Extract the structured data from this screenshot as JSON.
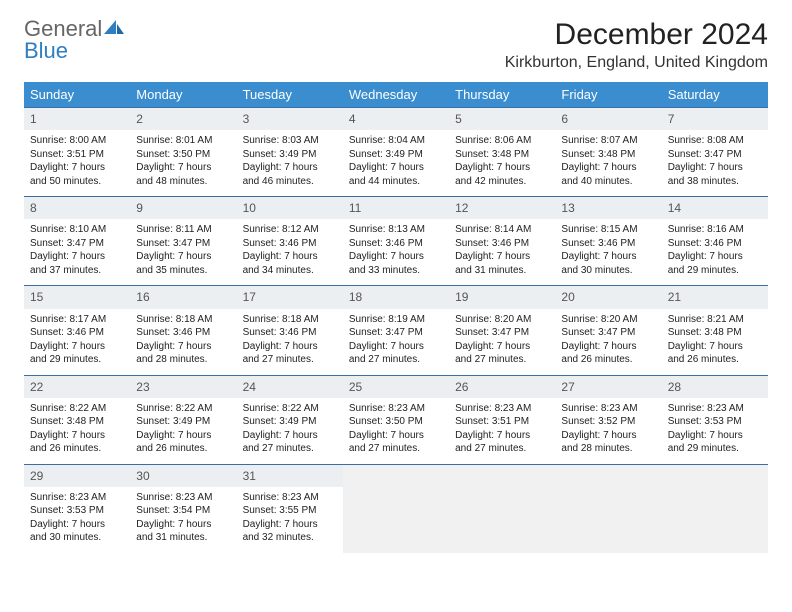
{
  "logo": {
    "line1": "General",
    "line2": "Blue"
  },
  "title": "December 2024",
  "location": "Kirkburton, England, United Kingdom",
  "colors": {
    "header_bg": "#3a8dce",
    "header_text": "#ffffff",
    "row_border": "#3a6ea5",
    "daynum_bg": "#eceff1",
    "empty_bg": "#f1f1f1",
    "logo_accent": "#2f7ec0"
  },
  "daysOfWeek": [
    "Sunday",
    "Monday",
    "Tuesday",
    "Wednesday",
    "Thursday",
    "Friday",
    "Saturday"
  ],
  "weeks": [
    [
      {
        "num": "1",
        "sunrise": "Sunrise: 8:00 AM",
        "sunset": "Sunset: 3:51 PM",
        "daylight": "Daylight: 7 hours and 50 minutes."
      },
      {
        "num": "2",
        "sunrise": "Sunrise: 8:01 AM",
        "sunset": "Sunset: 3:50 PM",
        "daylight": "Daylight: 7 hours and 48 minutes."
      },
      {
        "num": "3",
        "sunrise": "Sunrise: 8:03 AM",
        "sunset": "Sunset: 3:49 PM",
        "daylight": "Daylight: 7 hours and 46 minutes."
      },
      {
        "num": "4",
        "sunrise": "Sunrise: 8:04 AM",
        "sunset": "Sunset: 3:49 PM",
        "daylight": "Daylight: 7 hours and 44 minutes."
      },
      {
        "num": "5",
        "sunrise": "Sunrise: 8:06 AM",
        "sunset": "Sunset: 3:48 PM",
        "daylight": "Daylight: 7 hours and 42 minutes."
      },
      {
        "num": "6",
        "sunrise": "Sunrise: 8:07 AM",
        "sunset": "Sunset: 3:48 PM",
        "daylight": "Daylight: 7 hours and 40 minutes."
      },
      {
        "num": "7",
        "sunrise": "Sunrise: 8:08 AM",
        "sunset": "Sunset: 3:47 PM",
        "daylight": "Daylight: 7 hours and 38 minutes."
      }
    ],
    [
      {
        "num": "8",
        "sunrise": "Sunrise: 8:10 AM",
        "sunset": "Sunset: 3:47 PM",
        "daylight": "Daylight: 7 hours and 37 minutes."
      },
      {
        "num": "9",
        "sunrise": "Sunrise: 8:11 AM",
        "sunset": "Sunset: 3:47 PM",
        "daylight": "Daylight: 7 hours and 35 minutes."
      },
      {
        "num": "10",
        "sunrise": "Sunrise: 8:12 AM",
        "sunset": "Sunset: 3:46 PM",
        "daylight": "Daylight: 7 hours and 34 minutes."
      },
      {
        "num": "11",
        "sunrise": "Sunrise: 8:13 AM",
        "sunset": "Sunset: 3:46 PM",
        "daylight": "Daylight: 7 hours and 33 minutes."
      },
      {
        "num": "12",
        "sunrise": "Sunrise: 8:14 AM",
        "sunset": "Sunset: 3:46 PM",
        "daylight": "Daylight: 7 hours and 31 minutes."
      },
      {
        "num": "13",
        "sunrise": "Sunrise: 8:15 AM",
        "sunset": "Sunset: 3:46 PM",
        "daylight": "Daylight: 7 hours and 30 minutes."
      },
      {
        "num": "14",
        "sunrise": "Sunrise: 8:16 AM",
        "sunset": "Sunset: 3:46 PM",
        "daylight": "Daylight: 7 hours and 29 minutes."
      }
    ],
    [
      {
        "num": "15",
        "sunrise": "Sunrise: 8:17 AM",
        "sunset": "Sunset: 3:46 PM",
        "daylight": "Daylight: 7 hours and 29 minutes."
      },
      {
        "num": "16",
        "sunrise": "Sunrise: 8:18 AM",
        "sunset": "Sunset: 3:46 PM",
        "daylight": "Daylight: 7 hours and 28 minutes."
      },
      {
        "num": "17",
        "sunrise": "Sunrise: 8:18 AM",
        "sunset": "Sunset: 3:46 PM",
        "daylight": "Daylight: 7 hours and 27 minutes."
      },
      {
        "num": "18",
        "sunrise": "Sunrise: 8:19 AM",
        "sunset": "Sunset: 3:47 PM",
        "daylight": "Daylight: 7 hours and 27 minutes."
      },
      {
        "num": "19",
        "sunrise": "Sunrise: 8:20 AM",
        "sunset": "Sunset: 3:47 PM",
        "daylight": "Daylight: 7 hours and 27 minutes."
      },
      {
        "num": "20",
        "sunrise": "Sunrise: 8:20 AM",
        "sunset": "Sunset: 3:47 PM",
        "daylight": "Daylight: 7 hours and 26 minutes."
      },
      {
        "num": "21",
        "sunrise": "Sunrise: 8:21 AM",
        "sunset": "Sunset: 3:48 PM",
        "daylight": "Daylight: 7 hours and 26 minutes."
      }
    ],
    [
      {
        "num": "22",
        "sunrise": "Sunrise: 8:22 AM",
        "sunset": "Sunset: 3:48 PM",
        "daylight": "Daylight: 7 hours and 26 minutes."
      },
      {
        "num": "23",
        "sunrise": "Sunrise: 8:22 AM",
        "sunset": "Sunset: 3:49 PM",
        "daylight": "Daylight: 7 hours and 26 minutes."
      },
      {
        "num": "24",
        "sunrise": "Sunrise: 8:22 AM",
        "sunset": "Sunset: 3:49 PM",
        "daylight": "Daylight: 7 hours and 27 minutes."
      },
      {
        "num": "25",
        "sunrise": "Sunrise: 8:23 AM",
        "sunset": "Sunset: 3:50 PM",
        "daylight": "Daylight: 7 hours and 27 minutes."
      },
      {
        "num": "26",
        "sunrise": "Sunrise: 8:23 AM",
        "sunset": "Sunset: 3:51 PM",
        "daylight": "Daylight: 7 hours and 27 minutes."
      },
      {
        "num": "27",
        "sunrise": "Sunrise: 8:23 AM",
        "sunset": "Sunset: 3:52 PM",
        "daylight": "Daylight: 7 hours and 28 minutes."
      },
      {
        "num": "28",
        "sunrise": "Sunrise: 8:23 AM",
        "sunset": "Sunset: 3:53 PM",
        "daylight": "Daylight: 7 hours and 29 minutes."
      }
    ],
    [
      {
        "num": "29",
        "sunrise": "Sunrise: 8:23 AM",
        "sunset": "Sunset: 3:53 PM",
        "daylight": "Daylight: 7 hours and 30 minutes."
      },
      {
        "num": "30",
        "sunrise": "Sunrise: 8:23 AM",
        "sunset": "Sunset: 3:54 PM",
        "daylight": "Daylight: 7 hours and 31 minutes."
      },
      {
        "num": "31",
        "sunrise": "Sunrise: 8:23 AM",
        "sunset": "Sunset: 3:55 PM",
        "daylight": "Daylight: 7 hours and 32 minutes."
      },
      null,
      null,
      null,
      null
    ]
  ]
}
